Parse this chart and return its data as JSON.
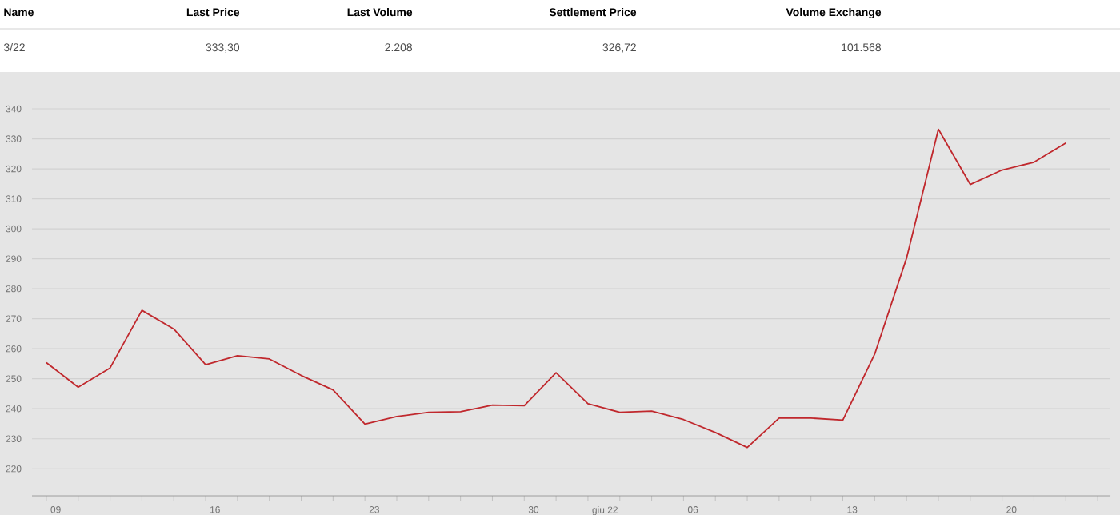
{
  "chart_data": {
    "type": "line",
    "annotations": [
      "Name",
      "Last Price",
      "Last Volume",
      "Settlement Price",
      "Volume Exchange",
      "3/22",
      "333,30",
      "2.208",
      "326,72",
      "101.568"
    ],
    "categories": [
      "09",
      null,
      null,
      null,
      null,
      "16",
      null,
      null,
      null,
      null,
      "23",
      null,
      null,
      null,
      null,
      "30",
      null,
      "giu 22",
      null,
      null,
      "06",
      null,
      null,
      null,
      null,
      "13",
      null,
      null,
      null,
      null,
      "20",
      null,
      null,
      null
    ],
    "series": [
      {
        "color": "#c0282d",
        "values": [
          255.4,
          247.2,
          253.6,
          272.8,
          266.6,
          254.7,
          257.7,
          256.6,
          251.1,
          246.3,
          234.9,
          237.4,
          238.8,
          239.0,
          241.2,
          241.0,
          252.0,
          241.7,
          238.8,
          239.2,
          236.4,
          232.1,
          227.1,
          236.9,
          236.9,
          236.2,
          258.2,
          290.2,
          333.2,
          314.8,
          319.6,
          322.2,
          328.6,
          null
        ]
      }
    ],
    "ylim": [
      211,
      340
    ],
    "yticks": [
      220,
      230,
      240,
      250,
      260,
      270,
      280,
      290,
      300,
      310,
      320,
      330,
      340
    ],
    "grid": "y",
    "marker": "none",
    "line_style": "solid"
  }
}
